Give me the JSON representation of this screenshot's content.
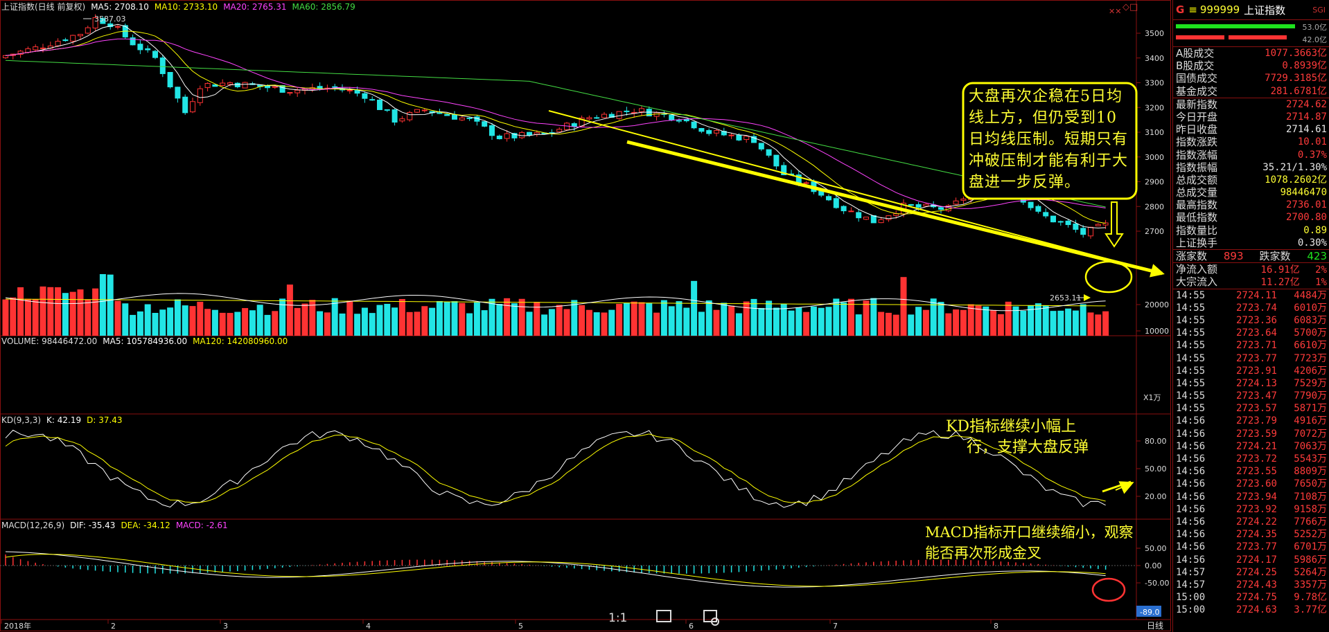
{
  "header": {
    "ma_line": [
      {
        "text": "上证指数(日线 前复权)",
        "color": "#dddddd"
      },
      {
        "text": "MA5: 2708.10",
        "color": "#ffffff"
      },
      {
        "text": "MA10: 2733.10",
        "color": "#ffff00"
      },
      {
        "text": "MA20: 2765.31",
        "color": "#ff44ff"
      },
      {
        "text": "MA60: 2856.79",
        "color": "#44dd44"
      }
    ],
    "high_label": "3587.03",
    "low_label": "2653.11"
  },
  "volume_header": [
    {
      "text": "VOLUME: 98446472.00",
      "color": "#dddddd"
    },
    {
      "text": "MA5: 105784936.00",
      "color": "#ffffff"
    },
    {
      "text": "MA120: 142080960.00",
      "color": "#ffff00"
    }
  ],
  "kd_header": [
    {
      "text": "KD(9,3,3)",
      "color": "#dddddd"
    },
    {
      "text": "K: 42.19",
      "color": "#ffffff"
    },
    {
      "text": "D: 37.43",
      "color": "#ffff00"
    }
  ],
  "macd_header": [
    {
      "text": "MACD(12,26,9)",
      "color": "#dddddd"
    },
    {
      "text": "DIF: -35.43",
      "color": "#ffffff"
    },
    {
      "text": "DEA: -34.12",
      "color": "#ffff00"
    },
    {
      "text": "MACD: -2.61",
      "color": "#ff44ff"
    }
  ],
  "price_axis": [
    "3500",
    "3400",
    "3300",
    "3200",
    "3100",
    "3000",
    "2900",
    "2800",
    "2700"
  ],
  "volume_axis": [
    "20000",
    "10000"
  ],
  "volume_unit": "X1万",
  "kd_axis": [
    "80.00",
    "50.00",
    "20.00"
  ],
  "macd_axis": [
    "50.00",
    "0.00",
    "-50.00"
  ],
  "macd_readout": "-89.0",
  "date_axis": [
    "2018年",
    "2",
    "3",
    "4",
    "5",
    "6",
    "7",
    "8"
  ],
  "period_label": "日线",
  "annotations": {
    "box_text": "大盘再次企稳在5日均线上方，但仍受到10日均线压制。短期只有冲破压制才能有利于大盘进一步反弹。",
    "kd_note_1": "KD指标继续小幅上",
    "kd_note_2": "行，支撑大盘反弹",
    "macd_note_1": "MACD指标开口继续缩小，观察",
    "macd_note_2": "能否再次形成金叉"
  },
  "toolbar": {
    "zoom_label": "1:1"
  },
  "panel": {
    "code": "999999",
    "name": "上证指数",
    "tag": "SGI",
    "bar_value_1": "53.0亿",
    "bar_value_2": "42.0亿",
    "stats": [
      {
        "k": "A股成交",
        "v": "1077.3663亿",
        "c": "red"
      },
      {
        "k": "B股成交",
        "v": "0.8939亿",
        "c": "red"
      },
      {
        "k": "国债成交",
        "v": "7729.3185亿",
        "c": "red"
      },
      {
        "k": "基金成交",
        "v": "281.6781亿",
        "c": "red"
      }
    ],
    "quote": [
      {
        "k": "最新指数",
        "v": "2724.62",
        "c": "red"
      },
      {
        "k": "今日开盘",
        "v": "2714.87",
        "c": "red"
      },
      {
        "k": "昨日收盘",
        "v": "2714.61",
        "c": "wht"
      },
      {
        "k": "指数涨跌",
        "v": "10.01",
        "c": "red"
      },
      {
        "k": "指数涨幅",
        "v": "0.37%",
        "c": "red"
      },
      {
        "k": "指数振幅",
        "v": "35.21/1.30%",
        "c": "wht"
      },
      {
        "k": "总成交额",
        "v": "1078.2602亿",
        "c": "yel"
      },
      {
        "k": "总成交量",
        "v": "98446470",
        "c": "yel"
      },
      {
        "k": "最高指数",
        "v": "2736.01",
        "c": "red"
      },
      {
        "k": "最低指数",
        "v": "2700.80",
        "c": "red"
      },
      {
        "k": "指数量比",
        "v": "0.89",
        "c": "yel"
      },
      {
        "k": "上证换手",
        "v": "0.30%",
        "c": "wht"
      }
    ],
    "breadth": {
      "up_label": "涨家数",
      "up": "893",
      "down_label": "跌家数",
      "down": "423"
    },
    "flow": [
      {
        "k": "净流入额",
        "v": "16.91亿",
        "p": "2%"
      },
      {
        "k": "大宗流入",
        "v": "11.27亿",
        "p": "1%"
      }
    ],
    "ticks": [
      {
        "t": "14:55",
        "p": "2724.11",
        "v": "4484万"
      },
      {
        "t": "14:55",
        "p": "2723.74",
        "v": "6010万"
      },
      {
        "t": "14:55",
        "p": "2723.36",
        "v": "6083万"
      },
      {
        "t": "14:55",
        "p": "2723.64",
        "v": "5700万"
      },
      {
        "t": "14:55",
        "p": "2723.71",
        "v": "6610万"
      },
      {
        "t": "14:55",
        "p": "2723.77",
        "v": "7723万"
      },
      {
        "t": "14:55",
        "p": "2723.91",
        "v": "4206万"
      },
      {
        "t": "14:55",
        "p": "2724.13",
        "v": "7529万"
      },
      {
        "t": "14:55",
        "p": "2723.47",
        "v": "7790万"
      },
      {
        "t": "14:55",
        "p": "2723.57",
        "v": "5871万"
      },
      {
        "t": "14:56",
        "p": "2723.79",
        "v": "4916万"
      },
      {
        "t": "14:56",
        "p": "2723.59",
        "v": "7072万"
      },
      {
        "t": "14:56",
        "p": "2724.21",
        "v": "7063万"
      },
      {
        "t": "14:56",
        "p": "2723.72",
        "v": "5543万"
      },
      {
        "t": "14:56",
        "p": "2723.55",
        "v": "8809万"
      },
      {
        "t": "14:56",
        "p": "2723.60",
        "v": "7650万"
      },
      {
        "t": "14:56",
        "p": "2723.94",
        "v": "7108万"
      },
      {
        "t": "14:56",
        "p": "2723.92",
        "v": "9158万"
      },
      {
        "t": "14:56",
        "p": "2724.22",
        "v": "7766万"
      },
      {
        "t": "14:56",
        "p": "2724.35",
        "v": "5252万"
      },
      {
        "t": "14:56",
        "p": "2723.77",
        "v": "6701万"
      },
      {
        "t": "14:56",
        "p": "2724.17",
        "v": "5986万"
      },
      {
        "t": "14:57",
        "p": "2724.25",
        "v": "5264万"
      },
      {
        "t": "14:57",
        "p": "2724.43",
        "v": "3357万"
      },
      {
        "t": "15:00",
        "p": "2724.75",
        "v": "9.78亿"
      },
      {
        "t": "15:00",
        "p": "2724.63",
        "v": "3.77亿"
      }
    ]
  },
  "colors": {
    "up": "#ff3333",
    "down": "#22e5e5",
    "ma5": "#ffffff",
    "ma10": "#ffff00",
    "ma20": "#ff44ff",
    "ma60": "#44dd44",
    "grid": "#8a1010",
    "trendline": "#ffff00"
  }
}
